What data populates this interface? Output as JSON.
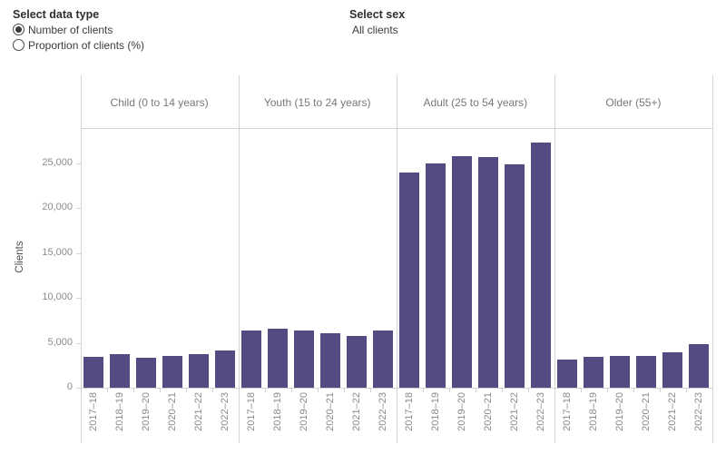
{
  "controls": {
    "data_type": {
      "label": "Select data type",
      "options": [
        {
          "label": "Number of clients",
          "selected": true
        },
        {
          "label": "Proportion of clients (%)",
          "selected": false
        }
      ]
    },
    "sex": {
      "label": "Select sex",
      "value": "All clients"
    }
  },
  "chart_data": {
    "type": "bar",
    "title": "",
    "xlabel": "",
    "ylabel": "Clients",
    "ylim": [
      0,
      29000
    ],
    "grid": false,
    "legend": false,
    "bar_color": "#554a82",
    "yticks": [
      0,
      5000,
      10000,
      15000,
      20000,
      25000
    ],
    "ytick_labels": [
      "0",
      "5,000",
      "10,000",
      "15,000",
      "20,000",
      "25,000"
    ],
    "categories": [
      "2017–18",
      "2018–19",
      "2019–20",
      "2020–21",
      "2021–22",
      "2022–23"
    ],
    "panels": [
      {
        "label": "Child (0 to 14 years)",
        "values": [
          3400,
          3700,
          3300,
          3500,
          3700,
          4100
        ]
      },
      {
        "label": "Youth (15 to 24 years)",
        "values": [
          6400,
          6600,
          6400,
          6100,
          5800,
          6400
        ]
      },
      {
        "label": "Adult (25 to 54 years)",
        "values": [
          23900,
          24900,
          25800,
          25700,
          24800,
          27300
        ]
      },
      {
        "label": "Older (55+)",
        "values": [
          3100,
          3400,
          3500,
          3500,
          3900,
          4800
        ]
      }
    ]
  }
}
